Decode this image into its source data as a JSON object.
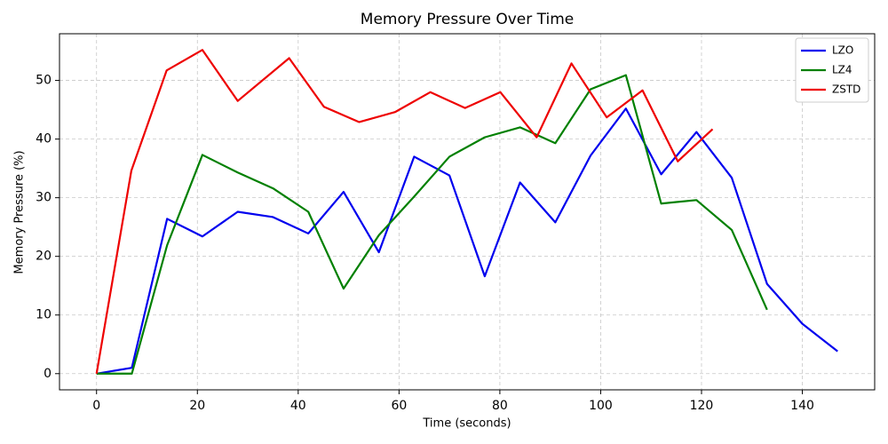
{
  "chart_data": {
    "type": "line",
    "title": "Memory Pressure Over Time",
    "xlabel": "Time (seconds)",
    "ylabel": "Memory Pressure (%)",
    "xlim": [
      -7.35,
      154.35
    ],
    "ylim": [
      -2.76,
      57.96
    ],
    "xticks": [
      0,
      20,
      40,
      60,
      80,
      100,
      120,
      140
    ],
    "yticks": [
      0,
      10,
      20,
      30,
      40,
      50
    ],
    "grid": true,
    "legend": "upper-right",
    "series": [
      {
        "name": "LZO",
        "color": "#0000ee",
        "x": [
          0,
          7,
          14,
          21,
          28,
          35,
          42,
          49,
          56,
          63,
          70,
          77,
          84,
          91,
          98,
          105,
          112,
          119,
          126,
          133,
          140,
          147
        ],
        "values": [
          0,
          1.0,
          26.4,
          23.4,
          27.6,
          26.7,
          23.9,
          31.0,
          20.7,
          37.0,
          33.8,
          16.6,
          32.6,
          25.8,
          37.2,
          45.2,
          34.0,
          41.2,
          33.4,
          15.3,
          8.5,
          3.8
        ]
      },
      {
        "name": "LZ4",
        "color": "#008000",
        "x": [
          0,
          7,
          14,
          21,
          28,
          35,
          42,
          49,
          56,
          63,
          70,
          77,
          84,
          91,
          98,
          105,
          112,
          119,
          126,
          133
        ],
        "values": [
          0,
          0,
          21.9,
          37.3,
          34.3,
          31.6,
          27.6,
          14.5,
          23.6,
          30.2,
          37.0,
          40.3,
          42.0,
          39.3,
          48.5,
          50.9,
          29.0,
          29.6,
          24.5,
          10.9
        ]
      },
      {
        "name": "ZSTD",
        "color": "#ee0000",
        "x": [
          0,
          6.9,
          13.9,
          21,
          28,
          38.2,
          45.1,
          52.1,
          59.2,
          66.2,
          73.1,
          80.1,
          87.3,
          94.2,
          101.2,
          108.3,
          115.3,
          122.2
        ],
        "values": [
          0,
          34.6,
          51.7,
          55.2,
          46.5,
          53.8,
          45.5,
          42.9,
          44.6,
          48.0,
          45.3,
          48.0,
          40.3,
          52.9,
          43.7,
          48.3,
          36.2,
          41.7
        ]
      }
    ]
  }
}
